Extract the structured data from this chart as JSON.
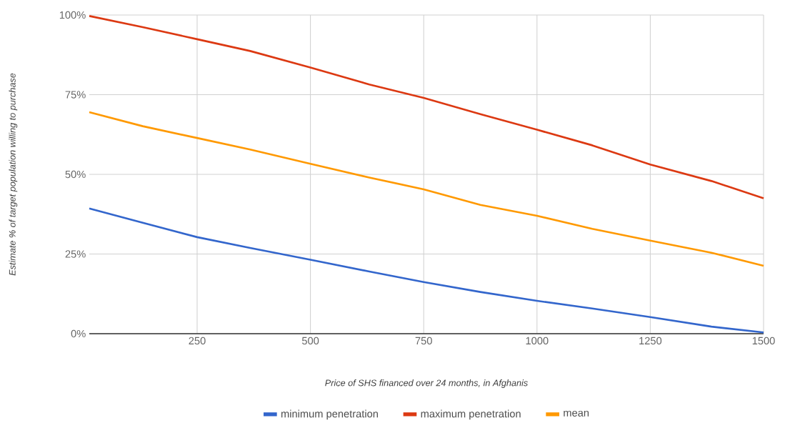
{
  "chart_data": {
    "type": "line",
    "xlabel": "Price of SHS financed over 24 months, in Afghanis",
    "ylabel": "Estimate % of target population willing to purchase",
    "x": [
      12,
      130,
      250,
      367,
      500,
      630,
      750,
      875,
      1000,
      1122,
      1250,
      1385,
      1500
    ],
    "series": [
      {
        "name": "minimum penetration",
        "color": "#3366cc",
        "values": [
          39.3,
          34.8,
          30.3,
          26.9,
          23.2,
          19.5,
          16.2,
          13.1,
          10.3,
          7.9,
          5.2,
          2.2,
          0.4
        ]
      },
      {
        "name": "maximum penetration",
        "color": "#dc3912",
        "values": [
          99.7,
          96.2,
          92.4,
          88.7,
          83.5,
          78.2,
          74.0,
          68.9,
          64.0,
          59.1,
          53.1,
          47.9,
          42.5
        ]
      },
      {
        "name": "mean",
        "color": "#ff9900",
        "values": [
          69.5,
          65.1,
          61.4,
          57.8,
          53.3,
          49.0,
          45.3,
          40.4,
          37.0,
          32.9,
          29.2,
          25.4,
          21.3
        ]
      }
    ],
    "xlim": [
      12,
      1500
    ],
    "xticks": [
      250,
      500,
      750,
      1000,
      1250,
      1500
    ],
    "ylim": [
      0,
      100
    ],
    "yticks": [
      {
        "value": 0,
        "label": "0%"
      },
      {
        "value": 25,
        "label": "25%"
      },
      {
        "value": 50,
        "label": "50%"
      },
      {
        "value": 75,
        "label": "75%"
      },
      {
        "value": 100,
        "label": "100%"
      }
    ],
    "grid": true,
    "legend": "bottom",
    "marker": "none",
    "line_style": "solid"
  }
}
